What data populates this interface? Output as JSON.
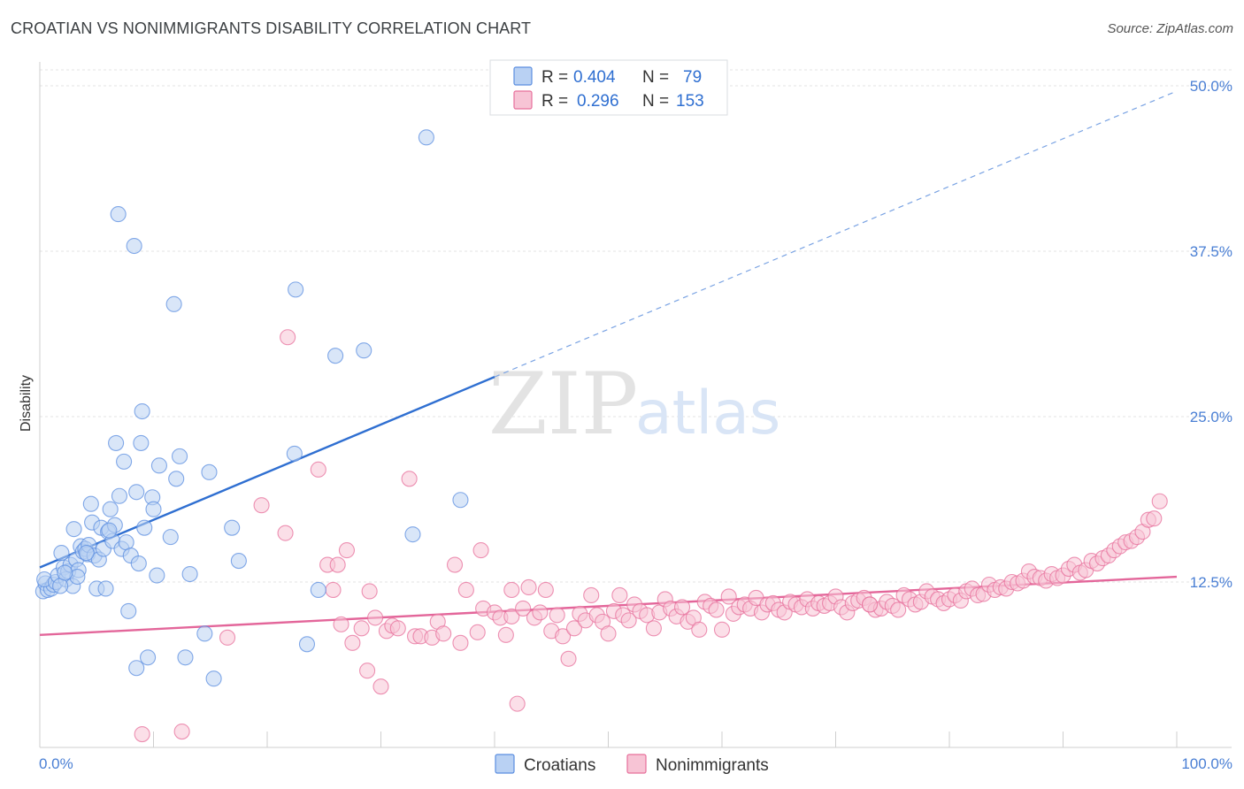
{
  "title": "CROATIAN VS NONIMMIGRANTS DISABILITY CORRELATION CHART",
  "source": "Source: ZipAtlas.com",
  "watermark": {
    "zip": "ZIP",
    "atlas": "atlas"
  },
  "colors": {
    "croatians": "#5b8ee0",
    "croatians_fill": "#b9d1f3",
    "nonimmigrants": "#e76f9b",
    "nonimmigrants_fill": "#f7c4d5",
    "tick_label": "#4a7fd4"
  },
  "legend": {
    "croatians": {
      "r_label": "R =",
      "r_value": "0.404",
      "n_label": "N =",
      "n_value": "79"
    },
    "nonimmigrants": {
      "r_label": "R =",
      "r_value": "0.296",
      "n_label": "N =",
      "n_value": "153"
    }
  },
  "bottom_legend": [
    "Croatians",
    "Nonimmigrants"
  ],
  "chart_data": {
    "type": "scatter",
    "title": "CROATIAN VS NONIMMIGRANTS DISABILITY CORRELATION CHART",
    "xlabel": "",
    "ylabel": "Disability",
    "xlim": [
      0,
      100
    ],
    "ylim": [
      0,
      51
    ],
    "y_ticks": [
      12.5,
      25.0,
      37.5,
      50.0
    ],
    "y_tick_labels": [
      "12.5%",
      "25.0%",
      "37.5%",
      "50.0%"
    ],
    "x_tick_labels": [
      "0.0%",
      "100.0%"
    ],
    "grid": true,
    "legend_position": "top-center",
    "series": [
      {
        "name": "Croatians",
        "r": 0.404,
        "n": 79,
        "trend": {
          "x0": 0,
          "y0": 13.6,
          "x1": 40,
          "y1": 28.0,
          "dashed_to": [
            100,
            49.6
          ]
        },
        "points": [
          [
            0.3,
            11.8
          ],
          [
            0.5,
            12.4
          ],
          [
            0.7,
            11.9
          ],
          [
            1.0,
            12.0
          ],
          [
            1.2,
            12.3
          ],
          [
            0.4,
            12.7
          ],
          [
            1.4,
            12.5
          ],
          [
            1.6,
            13.0
          ],
          [
            1.9,
            14.7
          ],
          [
            2.1,
            13.6
          ],
          [
            2.3,
            12.7
          ],
          [
            2.5,
            13.3
          ],
          [
            2.7,
            13.8
          ],
          [
            2.9,
            12.2
          ],
          [
            3.0,
            16.5
          ],
          [
            3.2,
            14.2
          ],
          [
            3.4,
            13.4
          ],
          [
            3.6,
            15.2
          ],
          [
            3.8,
            14.8
          ],
          [
            4.0,
            15.0
          ],
          [
            4.2,
            14.6
          ],
          [
            4.3,
            15.3
          ],
          [
            4.5,
            18.4
          ],
          [
            4.6,
            17.0
          ],
          [
            4.8,
            14.5
          ],
          [
            5.0,
            12.0
          ],
          [
            5.2,
            14.2
          ],
          [
            5.4,
            16.6
          ],
          [
            5.6,
            15.0
          ],
          [
            5.8,
            12.0
          ],
          [
            6.0,
            16.3
          ],
          [
            6.2,
            18.0
          ],
          [
            6.4,
            15.6
          ],
          [
            6.6,
            16.8
          ],
          [
            6.7,
            23.0
          ],
          [
            6.9,
            40.3
          ],
          [
            7.0,
            19.0
          ],
          [
            7.2,
            15.0
          ],
          [
            7.4,
            21.6
          ],
          [
            7.6,
            15.5
          ],
          [
            7.8,
            10.3
          ],
          [
            8.0,
            14.5
          ],
          [
            8.3,
            37.9
          ],
          [
            8.5,
            19.3
          ],
          [
            8.7,
            13.9
          ],
          [
            8.9,
            23.0
          ],
          [
            9.0,
            25.4
          ],
          [
            9.2,
            16.6
          ],
          [
            9.5,
            6.8
          ],
          [
            9.9,
            18.9
          ],
          [
            10.0,
            18.0
          ],
          [
            10.3,
            13.0
          ],
          [
            10.5,
            21.3
          ],
          [
            11.5,
            15.9
          ],
          [
            11.8,
            33.5
          ],
          [
            12.0,
            20.3
          ],
          [
            12.3,
            22.0
          ],
          [
            12.8,
            6.8
          ],
          [
            13.2,
            13.1
          ],
          [
            14.5,
            8.6
          ],
          [
            14.9,
            20.8
          ],
          [
            15.3,
            5.2
          ],
          [
            16.9,
            16.6
          ],
          [
            17.5,
            14.1
          ],
          [
            22.4,
            22.2
          ],
          [
            22.5,
            34.6
          ],
          [
            23.5,
            7.8
          ],
          [
            24.5,
            11.9
          ],
          [
            26.0,
            29.6
          ],
          [
            28.5,
            30.0
          ],
          [
            32.8,
            16.1
          ],
          [
            34.0,
            46.1
          ],
          [
            37.0,
            18.7
          ],
          [
            8.5,
            6.0
          ],
          [
            3.3,
            12.9
          ],
          [
            1.8,
            12.2
          ],
          [
            2.2,
            13.2
          ],
          [
            6.1,
            16.4
          ],
          [
            4.1,
            14.7
          ]
        ]
      },
      {
        "name": "Nonimmigrants",
        "r": 0.296,
        "n": 153,
        "trend": {
          "x0": 0,
          "y0": 8.5,
          "x1": 100,
          "y1": 12.9
        },
        "points": [
          [
            9.0,
            1.0
          ],
          [
            12.5,
            1.2
          ],
          [
            16.5,
            8.3
          ],
          [
            19.5,
            18.3
          ],
          [
            21.6,
            16.2
          ],
          [
            21.8,
            31.0
          ],
          [
            24.5,
            21.0
          ],
          [
            25.3,
            13.8
          ],
          [
            25.8,
            11.9
          ],
          [
            26.2,
            13.8
          ],
          [
            26.5,
            9.3
          ],
          [
            27.0,
            14.9
          ],
          [
            27.5,
            7.9
          ],
          [
            28.3,
            9.0
          ],
          [
            28.8,
            5.8
          ],
          [
            29.0,
            11.8
          ],
          [
            29.5,
            9.8
          ],
          [
            30.0,
            4.6
          ],
          [
            30.5,
            8.8
          ],
          [
            31.0,
            9.2
          ],
          [
            31.5,
            9.0
          ],
          [
            32.5,
            20.3
          ],
          [
            33.0,
            8.4
          ],
          [
            33.5,
            8.4
          ],
          [
            34.5,
            8.3
          ],
          [
            35.0,
            9.5
          ],
          [
            35.5,
            8.6
          ],
          [
            36.5,
            13.8
          ],
          [
            37.0,
            7.9
          ],
          [
            37.5,
            11.9
          ],
          [
            38.5,
            8.7
          ],
          [
            38.8,
            14.9
          ],
          [
            39.0,
            10.5
          ],
          [
            40.0,
            10.2
          ],
          [
            40.5,
            9.8
          ],
          [
            41.0,
            8.5
          ],
          [
            41.5,
            9.9
          ],
          [
            42.0,
            3.3
          ],
          [
            42.5,
            10.5
          ],
          [
            43.0,
            12.1
          ],
          [
            43.5,
            9.8
          ],
          [
            44.0,
            10.2
          ],
          [
            44.5,
            11.9
          ],
          [
            45.0,
            8.8
          ],
          [
            45.5,
            10.0
          ],
          [
            46.0,
            8.4
          ],
          [
            46.5,
            6.7
          ],
          [
            47.0,
            9.0
          ],
          [
            47.5,
            10.1
          ],
          [
            48.0,
            9.6
          ],
          [
            48.5,
            11.5
          ],
          [
            49.0,
            10.0
          ],
          [
            49.5,
            9.5
          ],
          [
            50.0,
            8.6
          ],
          [
            50.5,
            10.3
          ],
          [
            51.0,
            11.5
          ],
          [
            51.3,
            10.0
          ],
          [
            51.8,
            9.6
          ],
          [
            52.3,
            10.8
          ],
          [
            52.8,
            10.3
          ],
          [
            53.4,
            10.0
          ],
          [
            54.0,
            9.0
          ],
          [
            54.5,
            10.2
          ],
          [
            55.0,
            11.2
          ],
          [
            55.5,
            10.5
          ],
          [
            56.0,
            9.9
          ],
          [
            56.5,
            10.6
          ],
          [
            57.0,
            9.5
          ],
          [
            57.5,
            9.8
          ],
          [
            58.0,
            8.9
          ],
          [
            58.5,
            11.0
          ],
          [
            59.0,
            10.7
          ],
          [
            59.5,
            10.4
          ],
          [
            60.0,
            8.9
          ],
          [
            60.6,
            11.4
          ],
          [
            61.0,
            10.1
          ],
          [
            61.5,
            10.6
          ],
          [
            62.0,
            10.8
          ],
          [
            62.5,
            10.5
          ],
          [
            63.0,
            11.3
          ],
          [
            63.5,
            10.2
          ],
          [
            64.0,
            10.8
          ],
          [
            64.5,
            10.9
          ],
          [
            65.0,
            10.4
          ],
          [
            65.5,
            10.2
          ],
          [
            66.0,
            11.0
          ],
          [
            66.5,
            10.8
          ],
          [
            67.0,
            10.6
          ],
          [
            67.5,
            11.2
          ],
          [
            68.0,
            10.5
          ],
          [
            68.5,
            10.9
          ],
          [
            69.0,
            10.7
          ],
          [
            69.5,
            10.9
          ],
          [
            70.0,
            11.4
          ],
          [
            70.5,
            10.6
          ],
          [
            71.0,
            10.2
          ],
          [
            71.5,
            10.9
          ],
          [
            72.0,
            11.1
          ],
          [
            72.5,
            11.3
          ],
          [
            73.0,
            10.8
          ],
          [
            73.5,
            10.4
          ],
          [
            74.0,
            10.5
          ],
          [
            74.5,
            11.0
          ],
          [
            75.0,
            10.7
          ],
          [
            75.5,
            10.4
          ],
          [
            76.0,
            11.5
          ],
          [
            76.5,
            11.2
          ],
          [
            77.0,
            10.8
          ],
          [
            77.5,
            11.0
          ],
          [
            78.0,
            11.8
          ],
          [
            78.5,
            11.4
          ],
          [
            79.0,
            11.2
          ],
          [
            79.5,
            10.9
          ],
          [
            80.0,
            11.2
          ],
          [
            80.5,
            11.5
          ],
          [
            81.0,
            11.1
          ],
          [
            81.5,
            11.8
          ],
          [
            82.0,
            12.0
          ],
          [
            82.5,
            11.5
          ],
          [
            83.0,
            11.6
          ],
          [
            83.5,
            12.3
          ],
          [
            84.0,
            11.9
          ],
          [
            84.5,
            12.1
          ],
          [
            85.0,
            12.0
          ],
          [
            85.5,
            12.5
          ],
          [
            86.0,
            12.4
          ],
          [
            86.5,
            12.6
          ],
          [
            87.0,
            13.3
          ],
          [
            87.5,
            12.9
          ],
          [
            88.0,
            12.8
          ],
          [
            88.5,
            12.6
          ],
          [
            89.0,
            13.1
          ],
          [
            89.5,
            12.8
          ],
          [
            90.0,
            13.0
          ],
          [
            90.5,
            13.5
          ],
          [
            91.0,
            13.8
          ],
          [
            91.5,
            13.2
          ],
          [
            92.0,
            13.4
          ],
          [
            92.5,
            14.1
          ],
          [
            93.0,
            13.9
          ],
          [
            93.5,
            14.3
          ],
          [
            94.0,
            14.5
          ],
          [
            94.5,
            14.9
          ],
          [
            95.0,
            15.2
          ],
          [
            95.5,
            15.5
          ],
          [
            96.0,
            15.6
          ],
          [
            96.5,
            15.9
          ],
          [
            97.0,
            16.3
          ],
          [
            97.5,
            17.2
          ],
          [
            98.0,
            17.3
          ],
          [
            98.5,
            18.6
          ],
          [
            73.0,
            10.8
          ],
          [
            41.5,
            11.9
          ]
        ]
      }
    ]
  }
}
